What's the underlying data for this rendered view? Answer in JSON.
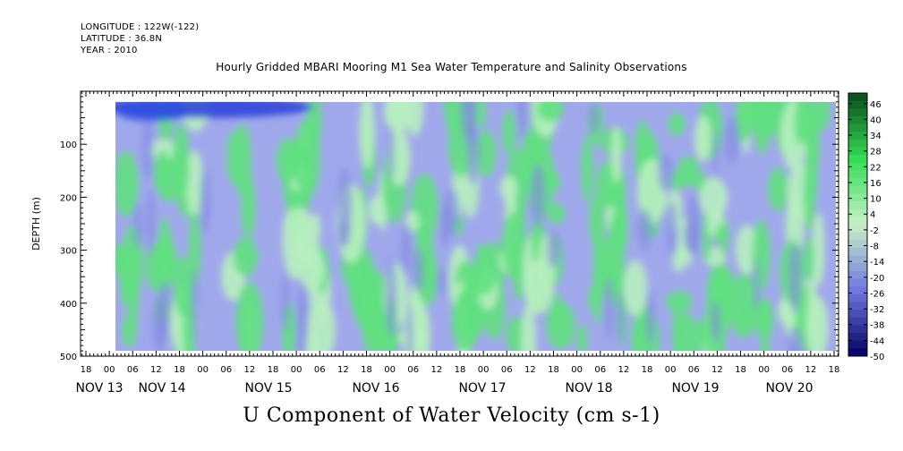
{
  "meta": {
    "longitude": "LONGITUDE : 122W(-122)",
    "latitude": "LATITUDE : 36.8N",
    "year": "YEAR : 2010"
  },
  "chart_data": {
    "type": "heatmap",
    "title": "Hourly Gridded MBARI Mooring M1 Sea Water Temperature and Salinity Observations",
    "xlabel": "U Component of Water Velocity (cm s-1)",
    "ylabel": "DEPTH (m)",
    "y_range": [
      500,
      0
    ],
    "y_inverted": true,
    "y_ticks": [
      100,
      200,
      300,
      400,
      500
    ],
    "data_depth_range": [
      20,
      490
    ],
    "x_hour_labels": [
      "18",
      "00",
      "06",
      "12",
      "18",
      "00",
      "06",
      "12",
      "18",
      "00",
      "06",
      "12",
      "18",
      "00",
      "06",
      "12",
      "18",
      "00",
      "06",
      "12",
      "18",
      "00",
      "06",
      "12",
      "18",
      "00",
      "06",
      "12",
      "18",
      "00",
      "06",
      "12",
      "18"
    ],
    "x_day_labels": [
      "NOV 13",
      "NOV 14",
      "NOV 15",
      "NOV 16",
      "NOV 17",
      "NOV 18",
      "NOV 19",
      "NOV 20"
    ],
    "colorbar": {
      "levels": [
        46,
        40,
        34,
        28,
        22,
        16,
        10,
        4,
        -2,
        -8,
        -14,
        -20,
        -26,
        -32,
        -38,
        -44,
        -50
      ],
      "range": [
        -50,
        50
      ],
      "color_high": "#0a4a1a",
      "color_pos": "#33dd55",
      "color_zero": "#c8f0c8",
      "color_neg": "#7078e0",
      "color_low": "#000060"
    },
    "field_colors": {
      "negative": "#a0a8ec",
      "positive": "#60e080",
      "surface_strong_negative": "#2840d8"
    }
  }
}
